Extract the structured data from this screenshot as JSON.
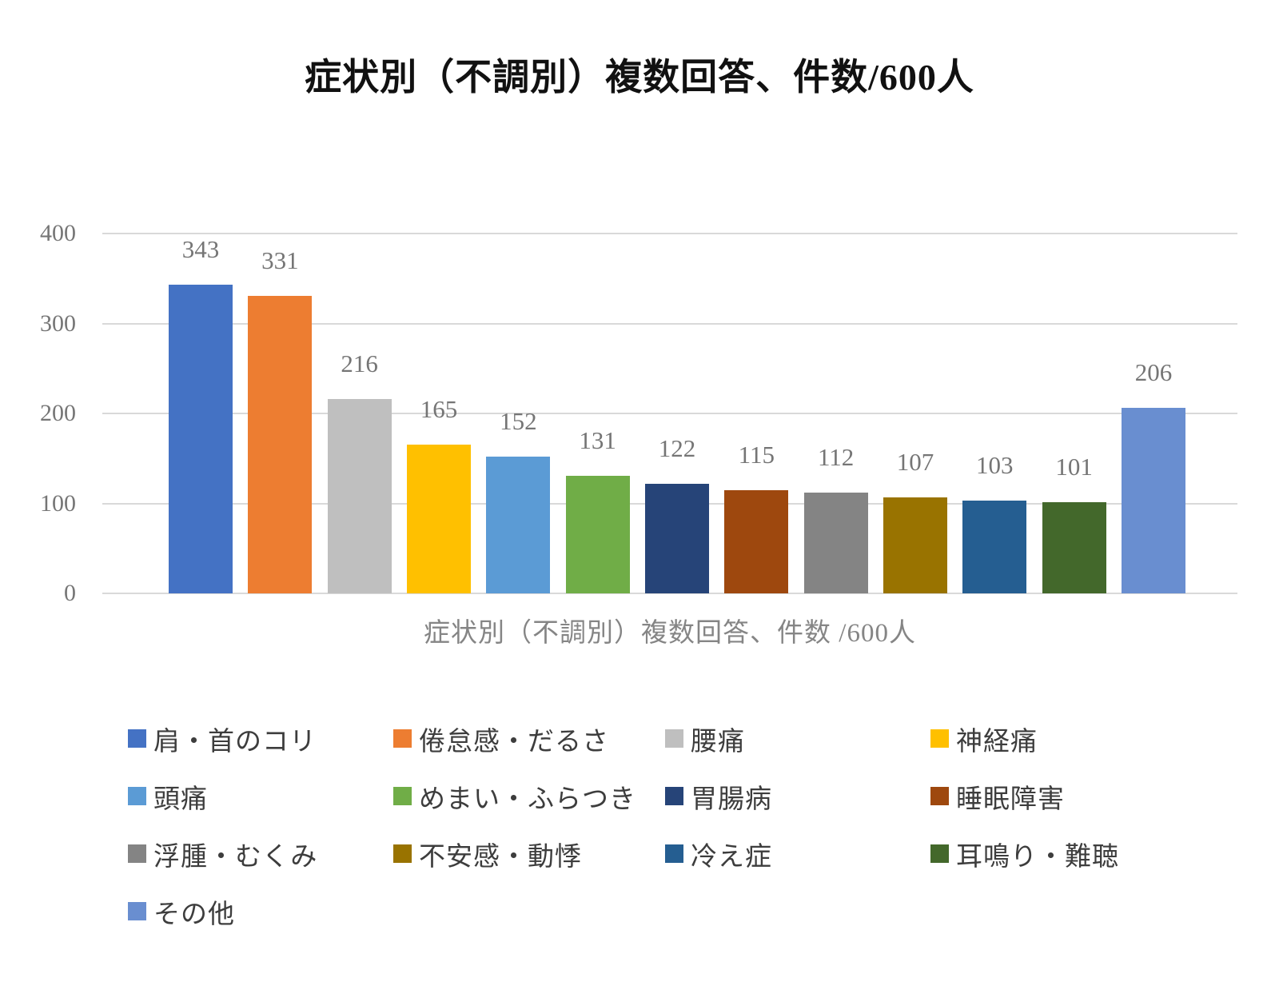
{
  "page_background": "#ffffff",
  "chart_data": {
    "type": "bar",
    "title": "症状別（不調別）複数回答、件数/600人",
    "xlabel": "症状別（不調別）複数回答、件数 /600人",
    "ylabel": "",
    "ylim": [
      0,
      400
    ],
    "yticks": [
      0,
      100,
      200,
      300,
      400
    ],
    "grid": true,
    "legend_position": "bottom",
    "data_labels": true,
    "categories": [
      "肩・首のコリ",
      "倦怠感・だるさ",
      "腰痛",
      "神経痛",
      "頭痛",
      "めまい・ふらつき",
      "胃腸病",
      "睡眠障害",
      "浮腫・むくみ",
      "不安感・動悸",
      "冷え症",
      "耳鳴り・難聴",
      "その他"
    ],
    "values": [
      343,
      331,
      216,
      165,
      152,
      131,
      122,
      115,
      112,
      107,
      103,
      101,
      206
    ],
    "colors": [
      "#4472C4",
      "#ED7D31",
      "#BFBFBF",
      "#FFC000",
      "#5B9BD5",
      "#70AD47",
      "#264478",
      "#9E480E",
      "#848484",
      "#997300",
      "#255E91",
      "#43682B",
      "#698ED0"
    ],
    "gridline_color": "#d9d9d9",
    "tick_label_color": "#767676",
    "data_label_color": "#757575",
    "axis_title_color": "#858585",
    "legend_text_color": "#3d3d3d",
    "title_color": "#111111"
  }
}
